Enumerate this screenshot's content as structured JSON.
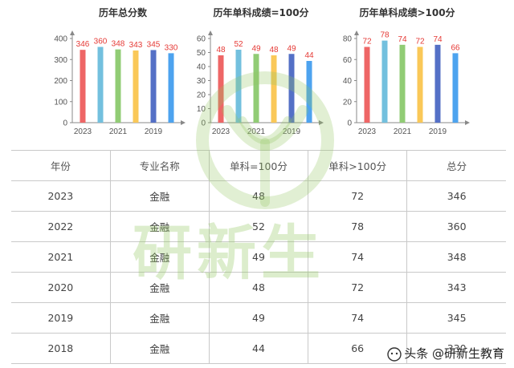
{
  "chart_data": [
    {
      "type": "bar",
      "title": "历年总分数",
      "categories": [
        "2023",
        "2022",
        "2021",
        "2020",
        "2019",
        "2018"
      ],
      "x_tick_labels": [
        "2023",
        "2021",
        "2019"
      ],
      "values": [
        346,
        360,
        348,
        343,
        345,
        330
      ],
      "ylim": [
        0,
        400
      ],
      "yticks": [
        0,
        100,
        200,
        300,
        400
      ],
      "bar_colors": [
        "#ee6666",
        "#73c0de",
        "#91cc75",
        "#fac858",
        "#5470c6",
        "#4da3ef"
      ],
      "label_color": "#e53935",
      "grid": false
    },
    {
      "type": "bar",
      "title": "历年单科成绩=100分",
      "categories": [
        "2023",
        "2022",
        "2021",
        "2020",
        "2019",
        "2018"
      ],
      "x_tick_labels": [
        "2023",
        "2021",
        "2019"
      ],
      "values": [
        48,
        52,
        49,
        48,
        49,
        44
      ],
      "ylim": [
        0,
        60
      ],
      "yticks": [
        0,
        10,
        20,
        30,
        40,
        50,
        60
      ],
      "bar_colors": [
        "#ee6666",
        "#73c0de",
        "#91cc75",
        "#fac858",
        "#5470c6",
        "#4da3ef"
      ],
      "label_color": "#e53935",
      "grid": false
    },
    {
      "type": "bar",
      "title": "历年单科成绩>100分",
      "categories": [
        "2023",
        "2022",
        "2021",
        "2020",
        "2019",
        "2018"
      ],
      "x_tick_labels": [
        "2023",
        "2021",
        "2019"
      ],
      "values": [
        72,
        78,
        74,
        72,
        74,
        66
      ],
      "ylim": [
        0,
        80
      ],
      "yticks": [
        0,
        20,
        40,
        60,
        80
      ],
      "bar_colors": [
        "#ee6666",
        "#73c0de",
        "#91cc75",
        "#fac858",
        "#5470c6",
        "#4da3ef"
      ],
      "label_color": "#e53935",
      "grid": false
    }
  ],
  "table": {
    "headers": [
      "年份",
      "专业名称",
      "单科=100分",
      "单科>100分",
      "总分"
    ],
    "rows": [
      [
        "2023",
        "金融",
        "48",
        "72",
        "346"
      ],
      [
        "2022",
        "金融",
        "52",
        "78",
        "360"
      ],
      [
        "2021",
        "金融",
        "49",
        "74",
        "348"
      ],
      [
        "2020",
        "金融",
        "48",
        "72",
        "343"
      ],
      [
        "2019",
        "金融",
        "49",
        "74",
        "345"
      ],
      [
        "2018",
        "金融",
        "44",
        "66",
        "330"
      ]
    ]
  },
  "watermark": {
    "text": "研新生",
    "color": "#92c660"
  },
  "source": {
    "text": "头条 @研新生教育",
    "icon": "toutiao-icon"
  }
}
